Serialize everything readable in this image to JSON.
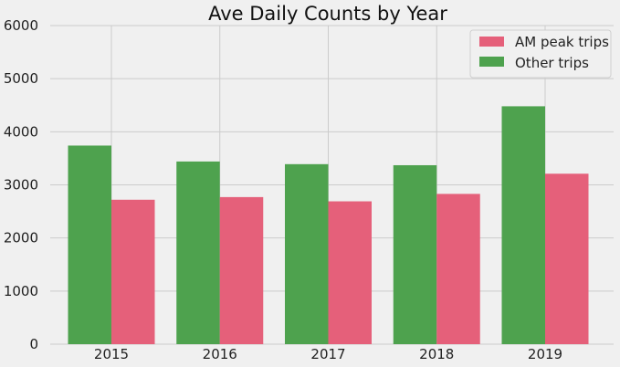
{
  "chart_data": {
    "type": "bar",
    "title": "Ave Daily Counts by Year",
    "xlabel": "",
    "ylabel": "",
    "categories": [
      "2015",
      "2016",
      "2017",
      "2018",
      "2019"
    ],
    "ylim": [
      0,
      6000
    ],
    "yticks": [
      0,
      1000,
      2000,
      3000,
      4000,
      5000,
      6000
    ],
    "grid": true,
    "legend_position": "top-right",
    "series": [
      {
        "name": "Other trips",
        "color": "#4ea24e",
        "values": [
          3740,
          3440,
          3390,
          3370,
          4480
        ]
      },
      {
        "name": "AM peak trips",
        "color": "#e5607a",
        "values": [
          2720,
          2770,
          2690,
          2830,
          3210
        ]
      }
    ],
    "legend": [
      "AM peak trips",
      "Other trips"
    ]
  }
}
